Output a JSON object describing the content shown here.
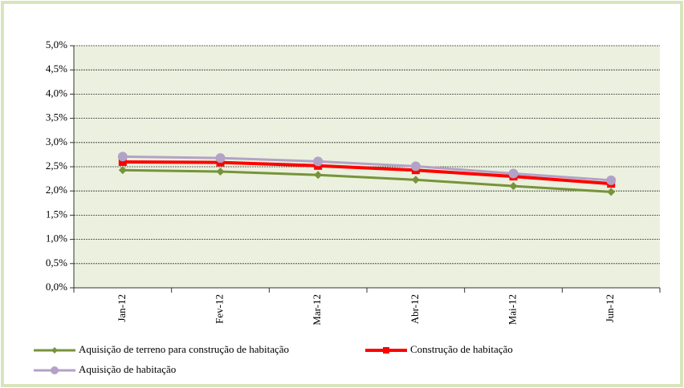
{
  "chart_data": {
    "type": "line",
    "categories": [
      "Jan-12",
      "Fev-12",
      "Mar-12",
      "Abr-12",
      "Mai-12",
      "Jun-12"
    ],
    "series": [
      {
        "name": "Aquisição de terreno para construção de habitação",
        "color": "#77933c",
        "marker": "diamond",
        "values": [
          2.43,
          2.4,
          2.33,
          2.23,
          2.1,
          1.98
        ]
      },
      {
        "name": "Construção de habitação",
        "color": "#ff0000",
        "marker": "square",
        "values": [
          2.6,
          2.59,
          2.52,
          2.43,
          2.3,
          2.15
        ]
      },
      {
        "name": "Aquisição de habitação",
        "color": "#b3a2c7",
        "marker": "circle",
        "values": [
          2.71,
          2.68,
          2.61,
          2.51,
          2.36,
          2.22
        ]
      }
    ],
    "ylim": [
      0,
      5
    ],
    "yticks": [
      {
        "value": 0,
        "label": "0,0%"
      },
      {
        "value": 0.5,
        "label": "0,5%"
      },
      {
        "value": 1,
        "label": "1,0%"
      },
      {
        "value": 1.5,
        "label": "1,5%"
      },
      {
        "value": 2,
        "label": "2,0%"
      },
      {
        "value": 2.5,
        "label": "2,5%"
      },
      {
        "value": 3,
        "label": "3,0%"
      },
      {
        "value": 3.5,
        "label": "3,5%"
      },
      {
        "value": 4,
        "label": "4,0%"
      },
      {
        "value": 4.5,
        "label": "4,5%"
      },
      {
        "value": 5,
        "label": "5,0%"
      }
    ],
    "grid": true,
    "legend": "bottom"
  }
}
